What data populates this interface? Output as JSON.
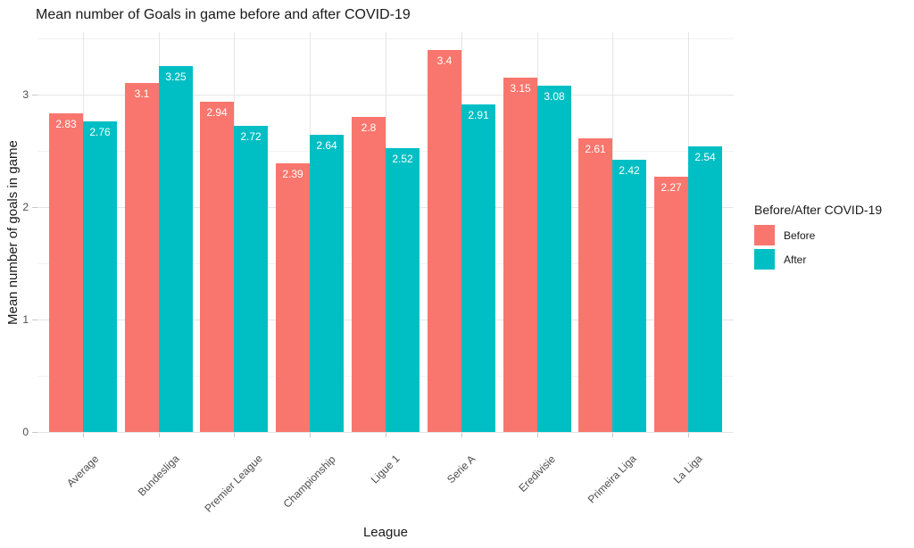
{
  "chart_data": {
    "type": "bar",
    "title": "Mean number of Goals in game before and after COVID-19",
    "xlabel": "League",
    "ylabel": "Mean number of goals in game",
    "legend_title": "Before/After COVID-19",
    "legend_position": "right",
    "categories": [
      "Average",
      "Bundesliga",
      "Premier League",
      "Championship",
      "Ligue 1",
      "Serie A",
      "Eredivisie",
      "Primeira Liga",
      "La Liga"
    ],
    "series": [
      {
        "name": "Before",
        "color": "#F8766D",
        "values": [
          2.83,
          3.1,
          2.94,
          2.39,
          2.8,
          3.4,
          3.15,
          2.61,
          2.27
        ]
      },
      {
        "name": "After",
        "color": "#00BFC4",
        "values": [
          2.76,
          3.25,
          2.72,
          2.64,
          2.52,
          2.91,
          3.08,
          2.42,
          2.54
        ]
      }
    ],
    "y_ticks": [
      0,
      1,
      2,
      3
    ],
    "ylim": [
      0,
      3.55
    ],
    "grid": true,
    "bar_value_labels": true,
    "x_label_angle": 45
  },
  "colors": {
    "before": "#F8766D",
    "after": "#00BFC4",
    "grid_major": "#E5E5E5",
    "grid_minor": "#F2F2F2",
    "tick": "#C9C9C9",
    "axis_text": "#4D4D4D",
    "title_text": "#1A1A1A",
    "bar_label_text": "#FFFFFF",
    "background": "#FFFFFF"
  }
}
